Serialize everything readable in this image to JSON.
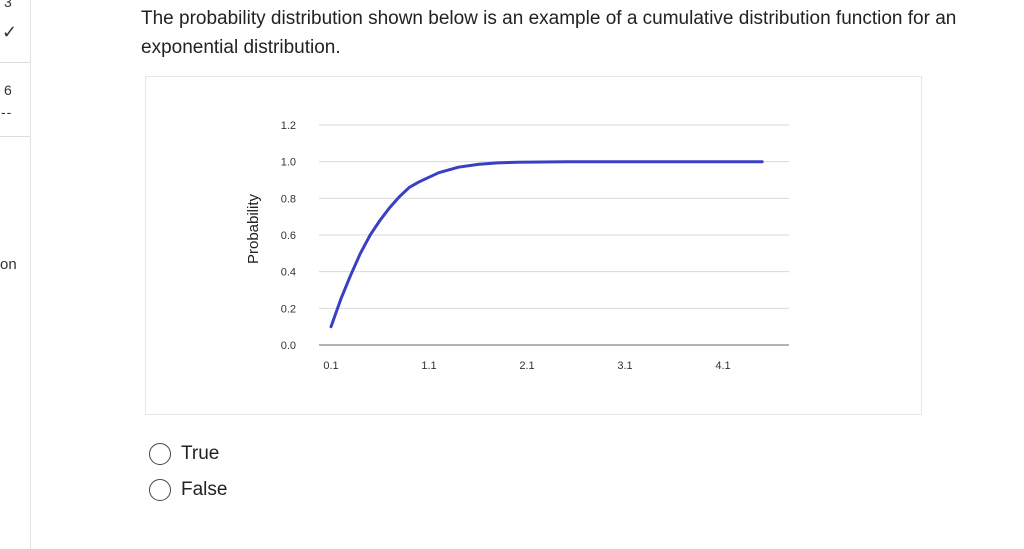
{
  "nav": {
    "items": [
      {
        "label": "3",
        "mark": "✓"
      },
      {
        "label": "6",
        "mark": "--"
      },
      {
        "label": "on"
      }
    ]
  },
  "question": {
    "text": "The probability distribution shown below is an example of a cumulative distribution function for an exponential distribution."
  },
  "options": [
    {
      "label": "True"
    },
    {
      "label": "False"
    }
  ],
  "colors": {
    "curve": "#3a3fc4",
    "grid": "#d9d9d9",
    "axis": "#9a9a9a",
    "text": "#222222"
  },
  "chart_data": {
    "type": "line",
    "title": "",
    "xlabel": "",
    "ylabel": "Probability",
    "x_ticks": [
      "0.1",
      "1.1",
      "2.1",
      "3.1",
      "4.1"
    ],
    "y_ticks": [
      "0.0",
      "0.2",
      "0.4",
      "0.6",
      "0.8",
      "1.0",
      "1.2"
    ],
    "xlim": [
      0.1,
      4.5
    ],
    "ylim": [
      0,
      1.2
    ],
    "grid": true,
    "legend": "none",
    "series": [
      {
        "x": [
          0.1,
          0.2,
          0.3,
          0.4,
          0.5,
          0.6,
          0.7,
          0.8,
          0.9,
          1.0,
          1.2,
          1.4,
          1.6,
          1.8,
          2.0,
          2.5,
          3.0,
          3.5,
          4.0,
          4.5
        ],
        "y": [
          0.1,
          0.25,
          0.38,
          0.5,
          0.6,
          0.68,
          0.75,
          0.81,
          0.86,
          0.89,
          0.94,
          0.97,
          0.985,
          0.993,
          0.997,
          1.0,
          1.0,
          1.0,
          1.0,
          1.0
        ]
      }
    ]
  }
}
